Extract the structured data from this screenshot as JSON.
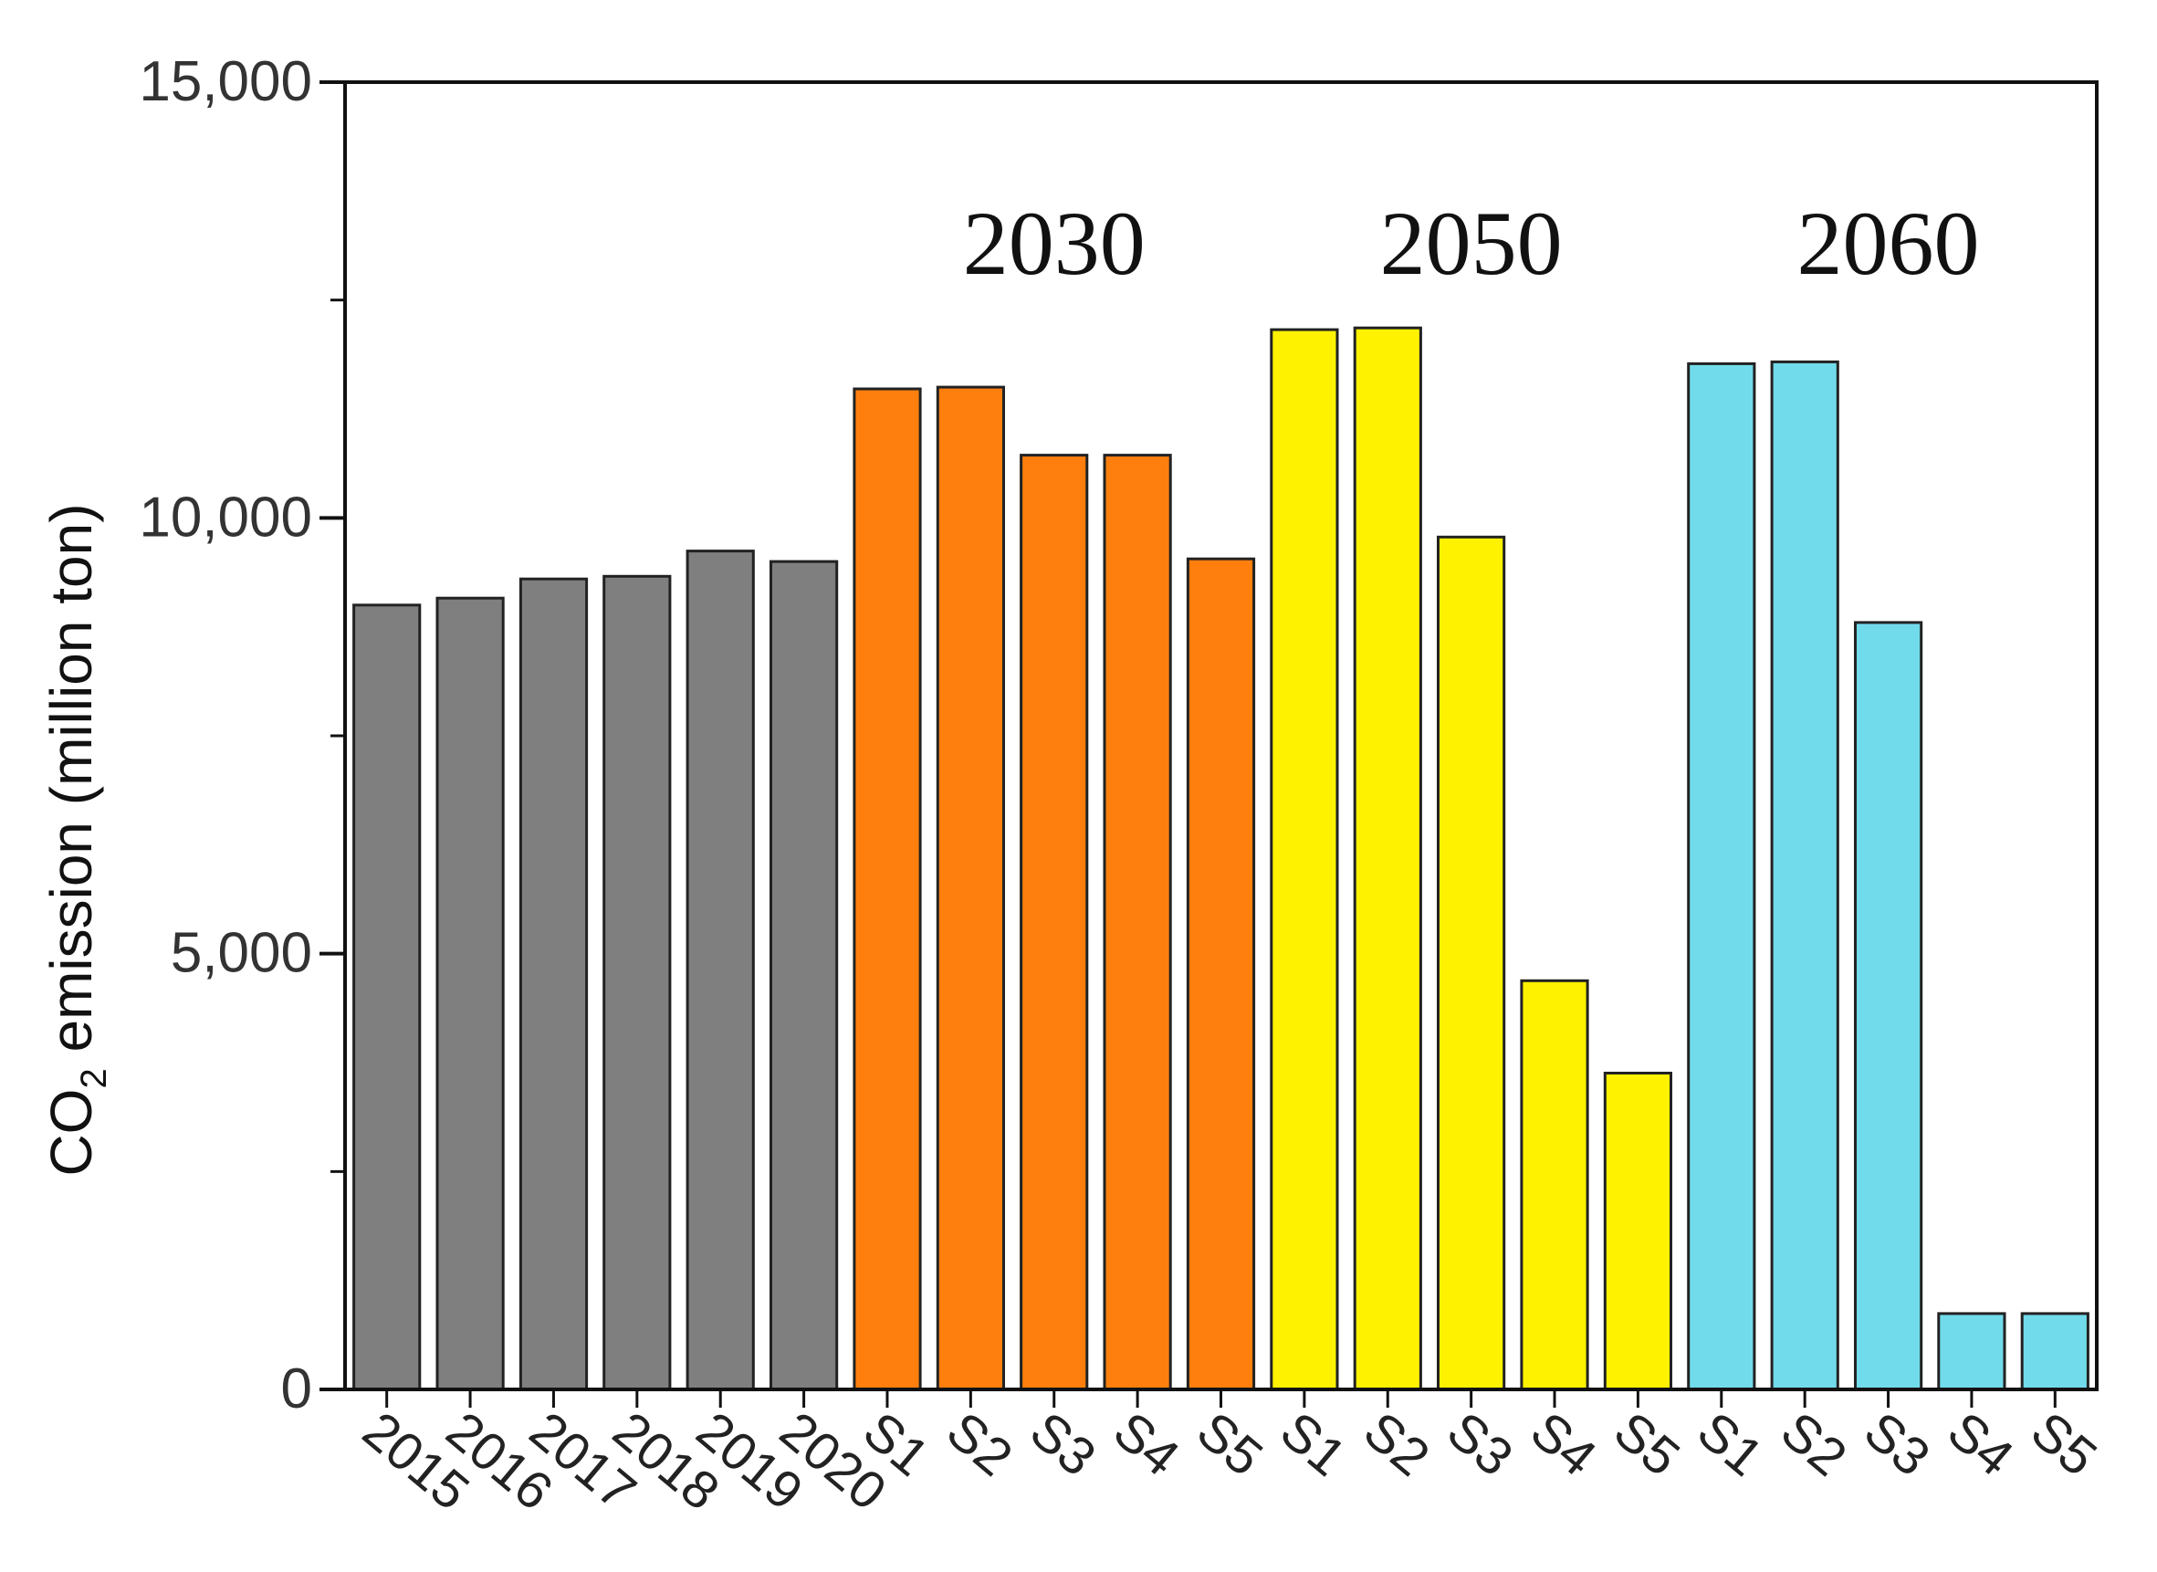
{
  "chart_data": {
    "type": "bar",
    "title": "",
    "ylabel": {
      "main_before": "CO",
      "subscript": "2",
      "main_after": " emission (million ton)"
    },
    "xlabel": "",
    "ylim": [
      0,
      15000
    ],
    "yticks": [
      {
        "value": 0,
        "label": "0"
      },
      {
        "value": 5000,
        "label": "5,000"
      },
      {
        "value": 10000,
        "label": "10,000"
      },
      {
        "value": 15000,
        "label": "15,000"
      }
    ],
    "minor_yticks": [
      2500,
      7500,
      12500
    ],
    "grid": false,
    "categories": [
      "2015",
      "2016",
      "2017",
      "2018",
      "2019",
      "2020",
      "S1",
      "S2",
      "S3",
      "S4",
      "S5",
      "S1",
      "S2",
      "S3",
      "S4",
      "S5",
      "S1",
      "S2",
      "S3",
      "S4",
      "S5"
    ],
    "values": [
      9000,
      9080,
      9300,
      9330,
      9620,
      9500,
      11480,
      11500,
      10720,
      10720,
      9530,
      12160,
      12180,
      9780,
      4690,
      3630,
      11770,
      11790,
      8800,
      870,
      870
    ],
    "groups": [
      {
        "label": "",
        "start": 0,
        "end": 5,
        "color": "#7f7f7f"
      },
      {
        "label": "2030",
        "start": 6,
        "end": 10,
        "color": "#ff7f0e"
      },
      {
        "label": "2050",
        "start": 11,
        "end": 15,
        "color": "#fff200"
      },
      {
        "label": "2060",
        "start": 16,
        "end": 20,
        "color": "#72dbeb"
      }
    ],
    "bar_edge_color": "#222222"
  }
}
